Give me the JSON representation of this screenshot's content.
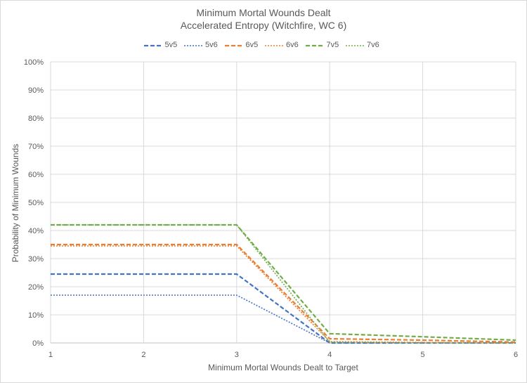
{
  "chart_data": {
    "type": "line",
    "title": "Minimum Mortal Wounds Dealt",
    "subtitle": "Accelerated Entropy (Witchfire, WC 6)",
    "xlabel": "Minimum Mortal Wounds Dealt to Target",
    "ylabel": "Probability of Minimum Wounds",
    "x": [
      1,
      2,
      3,
      4,
      5,
      6
    ],
    "xlim": [
      1,
      6
    ],
    "ylim": [
      0,
      1
    ],
    "y_ticks": [
      "0%",
      "10%",
      "20%",
      "30%",
      "40%",
      "50%",
      "60%",
      "70%",
      "80%",
      "90%",
      "100%"
    ],
    "x_ticks": [
      "1",
      "2",
      "3",
      "4",
      "5",
      "6"
    ],
    "grid": true,
    "legend_position": "top",
    "series": [
      {
        "name": "5v5",
        "color": "#4472c4",
        "dash": "dashed",
        "values": [
          0.245,
          0.245,
          0.245,
          0.0,
          0.0,
          0.0
        ]
      },
      {
        "name": "5v6",
        "color": "#4472c4",
        "dash": "dotted",
        "values": [
          0.17,
          0.17,
          0.17,
          0.0,
          0.0,
          0.0
        ]
      },
      {
        "name": "6v5",
        "color": "#ed7d31",
        "dash": "dashed",
        "values": [
          0.35,
          0.35,
          0.35,
          0.015,
          0.01,
          0.003
        ]
      },
      {
        "name": "6v6",
        "color": "#ed7d31",
        "dash": "dotted",
        "values": [
          0.345,
          0.345,
          0.345,
          0.005,
          0.002,
          0.0
        ]
      },
      {
        "name": "7v5",
        "color": "#70ad47",
        "dash": "dashed",
        "values": [
          0.42,
          0.42,
          0.42,
          0.033,
          0.022,
          0.01
        ]
      },
      {
        "name": "7v6",
        "color": "#70ad47",
        "dash": "dotted",
        "values": [
          0.42,
          0.42,
          0.42,
          0.003,
          0.0,
          0.0
        ]
      }
    ]
  }
}
